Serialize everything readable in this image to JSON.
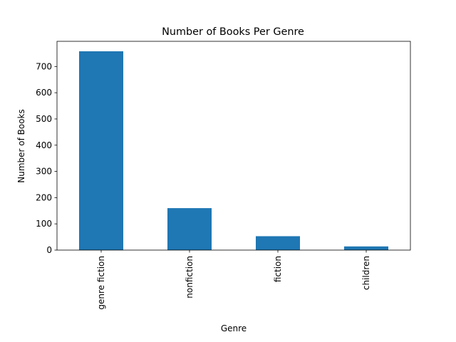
{
  "chart_data": {
    "type": "bar",
    "title": "Number of Books Per Genre",
    "xlabel": "Genre",
    "ylabel": "Number of Books",
    "categories": [
      "genre fiction",
      "nonfiction",
      "fiction",
      "children"
    ],
    "values": [
      758,
      160,
      53,
      14
    ],
    "ylim": [
      0,
      796
    ],
    "yticks": [
      0,
      100,
      200,
      300,
      400,
      500,
      600,
      700
    ],
    "grid": false,
    "legend": "none",
    "bar_color": "#1f77b4"
  }
}
